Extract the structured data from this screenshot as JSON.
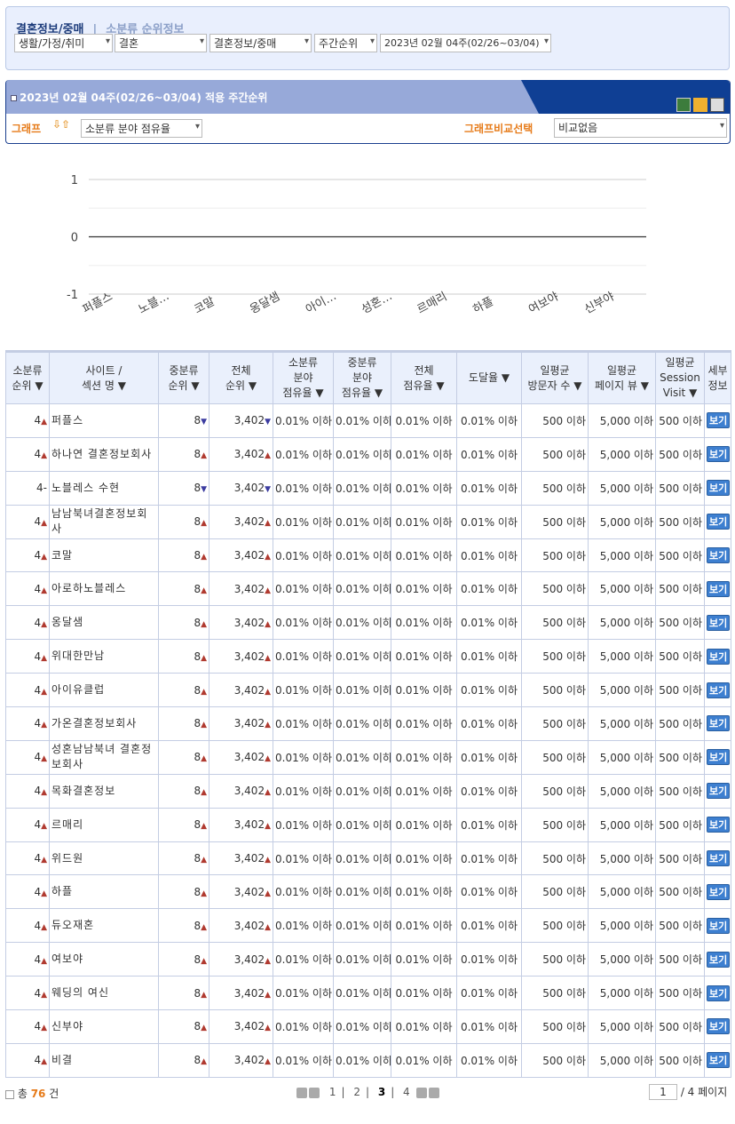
{
  "breadcrumb": {
    "category": "결혼정보/중매",
    "separator": "|",
    "page": "소분류 순위정보"
  },
  "filters": [
    {
      "value": "생활/가정/취미"
    },
    {
      "value": "결혼"
    },
    {
      "value": "결혼정보/중매"
    },
    {
      "value": "주간순위"
    },
    {
      "value": "2023년 02월 04주(02/26~03/04)"
    }
  ],
  "panel": {
    "title": "2023년 02월 04주(02/26~03/04) 적용 주간순위",
    "icons": [
      "excel-icon",
      "mail-icon",
      "print-icon"
    ],
    "graph_label": "그래프",
    "graph_select": "소분류 분야 점유율",
    "compare_label": "그래프비교선택",
    "compare_select": "비교없음"
  },
  "chart_data": {
    "type": "line",
    "categories": [
      "퍼플스",
      "노블…",
      "코말",
      "옹달샘",
      "아이…",
      "성혼…",
      "르매리",
      "하플",
      "여보야",
      "신부야"
    ],
    "values": [
      0,
      0,
      0,
      0,
      0,
      0,
      0,
      0,
      0,
      0
    ],
    "ylim": [
      -1,
      1
    ],
    "yticks": [
      "1",
      "0",
      "-1"
    ],
    "grid": true,
    "line_color": "#333333"
  },
  "table": {
    "headers": [
      "소분류\n순위 ▼",
      "사이트 /\n섹션 명 ▼",
      "중분류\n순위 ▼",
      "전체\n순위 ▼",
      "소분류\n분야\n점유율 ▼",
      "중분류\n분야\n점유율 ▼",
      "전체\n점유율 ▼",
      "도달율 ▼",
      "일평균\n방문자 수 ▼",
      "일평균\n페이지 뷰 ▼",
      "일평균\nSession\nVisit ▼",
      "세부\n정보"
    ],
    "button_label": "보기",
    "rows": [
      {
        "rank": "4",
        "rank_trend": "up",
        "name": "퍼플스",
        "mid": "8",
        "mid_trend": "down",
        "total": "3,402",
        "total_trend": "down"
      },
      {
        "rank": "4",
        "rank_trend": "up",
        "name": "하나연 결혼정보회사",
        "mid": "8",
        "mid_trend": "up",
        "total": "3,402",
        "total_trend": "up"
      },
      {
        "rank": "4",
        "rank_trend": "same",
        "name": "노블레스 수현",
        "mid": "8",
        "mid_trend": "down",
        "total": "3,402",
        "total_trend": "down"
      },
      {
        "rank": "4",
        "rank_trend": "up",
        "name": "남남북녀결혼정보회사",
        "mid": "8",
        "mid_trend": "up",
        "total": "3,402",
        "total_trend": "up"
      },
      {
        "rank": "4",
        "rank_trend": "up",
        "name": "코말",
        "mid": "8",
        "mid_trend": "up",
        "total": "3,402",
        "total_trend": "up"
      },
      {
        "rank": "4",
        "rank_trend": "up",
        "name": "아로하노블레스",
        "mid": "8",
        "mid_trend": "up",
        "total": "3,402",
        "total_trend": "up"
      },
      {
        "rank": "4",
        "rank_trend": "up",
        "name": "옹달샘",
        "mid": "8",
        "mid_trend": "up",
        "total": "3,402",
        "total_trend": "up"
      },
      {
        "rank": "4",
        "rank_trend": "up",
        "name": "위대한만남",
        "mid": "8",
        "mid_trend": "up",
        "total": "3,402",
        "total_trend": "up"
      },
      {
        "rank": "4",
        "rank_trend": "up",
        "name": "아이유클럽",
        "mid": "8",
        "mid_trend": "up",
        "total": "3,402",
        "total_trend": "up"
      },
      {
        "rank": "4",
        "rank_trend": "up",
        "name": "가온결혼정보회사",
        "mid": "8",
        "mid_trend": "up",
        "total": "3,402",
        "total_trend": "up"
      },
      {
        "rank": "4",
        "rank_trend": "up",
        "name": "성혼남남북녀 결혼정보회사",
        "mid": "8",
        "mid_trend": "up",
        "total": "3,402",
        "total_trend": "up"
      },
      {
        "rank": "4",
        "rank_trend": "up",
        "name": "목화결혼정보",
        "mid": "8",
        "mid_trend": "up",
        "total": "3,402",
        "total_trend": "up"
      },
      {
        "rank": "4",
        "rank_trend": "up",
        "name": "르매리",
        "mid": "8",
        "mid_trend": "up",
        "total": "3,402",
        "total_trend": "up"
      },
      {
        "rank": "4",
        "rank_trend": "up",
        "name": "위드원",
        "mid": "8",
        "mid_trend": "up",
        "total": "3,402",
        "total_trend": "up"
      },
      {
        "rank": "4",
        "rank_trend": "up",
        "name": "하플",
        "mid": "8",
        "mid_trend": "up",
        "total": "3,402",
        "total_trend": "up"
      },
      {
        "rank": "4",
        "rank_trend": "up",
        "name": "듀오재혼",
        "mid": "8",
        "mid_trend": "up",
        "total": "3,402",
        "total_trend": "up"
      },
      {
        "rank": "4",
        "rank_trend": "up",
        "name": "여보야",
        "mid": "8",
        "mid_trend": "up",
        "total": "3,402",
        "total_trend": "up"
      },
      {
        "rank": "4",
        "rank_trend": "up",
        "name": "웨딩의 여신",
        "mid": "8",
        "mid_trend": "up",
        "total": "3,402",
        "total_trend": "up"
      },
      {
        "rank": "4",
        "rank_trend": "up",
        "name": "신부야",
        "mid": "8",
        "mid_trend": "up",
        "total": "3,402",
        "total_trend": "up"
      },
      {
        "rank": "4",
        "rank_trend": "up",
        "name": "비결",
        "mid": "8",
        "mid_trend": "up",
        "total": "3,402",
        "total_trend": "up"
      }
    ],
    "common": {
      "small_share": "0.01% 이하",
      "mid_share": "0.01% 이하",
      "total_share": "0.01% 이하",
      "reach": "0.01% 이하",
      "visitors": "500 이하",
      "pageviews": "5,000 이하",
      "sessions": "500 이하"
    }
  },
  "footer": {
    "total_prefix": "총",
    "total_count": "76",
    "total_suffix": "건",
    "pages": [
      "1",
      "2",
      "3",
      "4"
    ],
    "current_page": "3",
    "page_input": "1",
    "page_total": "/ 4 페이지"
  },
  "colors": {
    "up": "#b03a30",
    "down": "#3c3ca0",
    "accent": "#e67a18",
    "header_bar": "#0f3f94"
  }
}
